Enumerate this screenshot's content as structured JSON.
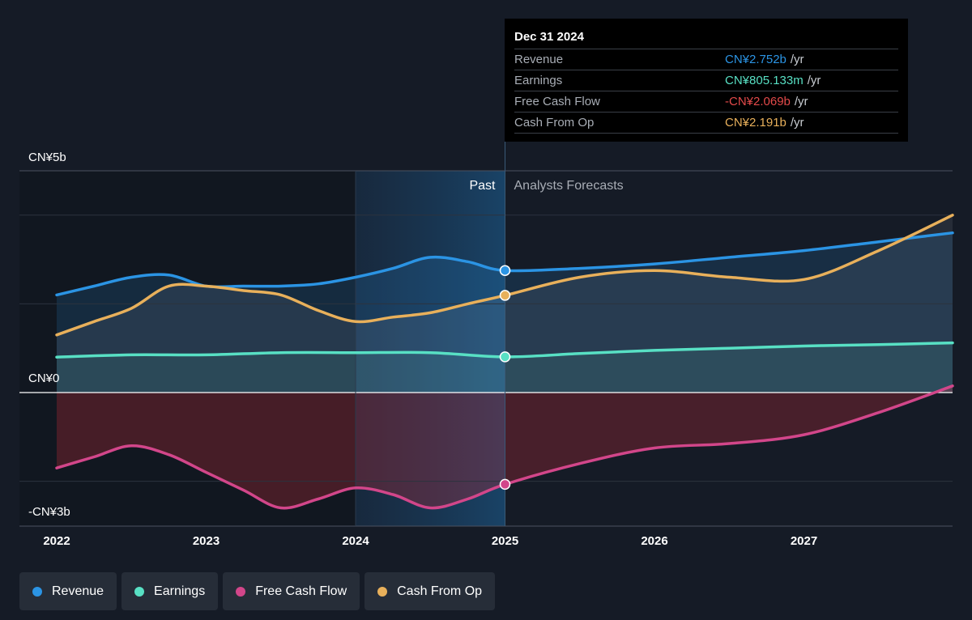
{
  "chart_data": {
    "type": "area",
    "y_axis_labels": [
      "CN¥5b",
      "CN¥0",
      "-CN¥3b"
    ],
    "ylim": [
      -3,
      5
    ],
    "xlim": [
      2022.0,
      2027.999
    ],
    "x_ticks": [
      "2022",
      "2023",
      "2024",
      "2025",
      "2026",
      "2027"
    ],
    "grid": true,
    "divider_x": 2025.0,
    "highlight_range": [
      2024.0,
      2025.0
    ],
    "past_label": "Past",
    "forecast_label": "Analysts Forecasts",
    "series": [
      {
        "name": "Revenue",
        "color": "#2b94e4",
        "points": [
          [
            2022.0,
            2.2
          ],
          [
            2022.25,
            2.4
          ],
          [
            2022.5,
            2.6
          ],
          [
            2022.75,
            2.65
          ],
          [
            2023.0,
            2.4
          ],
          [
            2023.25,
            2.4
          ],
          [
            2023.5,
            2.4
          ],
          [
            2023.75,
            2.45
          ],
          [
            2024.0,
            2.6
          ],
          [
            2024.25,
            2.8
          ],
          [
            2024.5,
            3.05
          ],
          [
            2024.75,
            2.95
          ],
          [
            2025.0,
            2.752
          ],
          [
            2025.5,
            2.8
          ],
          [
            2026.0,
            2.9
          ],
          [
            2026.5,
            3.05
          ],
          [
            2027.0,
            3.2
          ],
          [
            2027.5,
            3.4
          ],
          [
            2028.0,
            3.6
          ]
        ],
        "marker_value": 2.752
      },
      {
        "name": "Earnings",
        "color": "#58e0c4",
        "points": [
          [
            2022.0,
            0.8
          ],
          [
            2022.5,
            0.85
          ],
          [
            2023.0,
            0.85
          ],
          [
            2023.5,
            0.9
          ],
          [
            2024.0,
            0.9
          ],
          [
            2024.5,
            0.9
          ],
          [
            2025.0,
            0.805
          ],
          [
            2025.5,
            0.88
          ],
          [
            2026.0,
            0.95
          ],
          [
            2026.5,
            1.0
          ],
          [
            2027.0,
            1.05
          ],
          [
            2027.5,
            1.08
          ],
          [
            2028.0,
            1.12
          ]
        ],
        "marker_value": 0.805
      },
      {
        "name": "Free Cash Flow",
        "color": "#d2468a",
        "points": [
          [
            2022.0,
            -1.7
          ],
          [
            2022.25,
            -1.45
          ],
          [
            2022.5,
            -1.2
          ],
          [
            2022.75,
            -1.4
          ],
          [
            2023.0,
            -1.8
          ],
          [
            2023.25,
            -2.2
          ],
          [
            2023.5,
            -2.6
          ],
          [
            2023.75,
            -2.4
          ],
          [
            2024.0,
            -2.15
          ],
          [
            2024.25,
            -2.3
          ],
          [
            2024.5,
            -2.6
          ],
          [
            2024.75,
            -2.4
          ],
          [
            2025.0,
            -2.069
          ],
          [
            2025.5,
            -1.6
          ],
          [
            2026.0,
            -1.25
          ],
          [
            2026.5,
            -1.15
          ],
          [
            2027.0,
            -0.95
          ],
          [
            2027.5,
            -0.45
          ],
          [
            2028.0,
            0.15
          ]
        ],
        "marker_value": -2.069
      },
      {
        "name": "Cash From Op",
        "color": "#e8b05b",
        "points": [
          [
            2022.0,
            1.3
          ],
          [
            2022.25,
            1.6
          ],
          [
            2022.5,
            1.9
          ],
          [
            2022.75,
            2.4
          ],
          [
            2023.0,
            2.4
          ],
          [
            2023.25,
            2.3
          ],
          [
            2023.5,
            2.2
          ],
          [
            2023.75,
            1.85
          ],
          [
            2024.0,
            1.6
          ],
          [
            2024.25,
            1.7
          ],
          [
            2024.5,
            1.8
          ],
          [
            2024.75,
            2.0
          ],
          [
            2025.0,
            2.191
          ],
          [
            2025.5,
            2.6
          ],
          [
            2026.0,
            2.75
          ],
          [
            2026.5,
            2.6
          ],
          [
            2027.0,
            2.55
          ],
          [
            2027.5,
            3.2
          ],
          [
            2028.0,
            4.0
          ]
        ],
        "marker_value": 2.191
      }
    ]
  },
  "tooltip": {
    "date": "Dec 31 2024",
    "rows": [
      {
        "label": "Revenue",
        "value": "CN¥2.752b",
        "unit": "/yr",
        "color": "#2b94e4"
      },
      {
        "label": "Earnings",
        "value": "CN¥805.133m",
        "unit": "/yr",
        "color": "#58e0c4"
      },
      {
        "label": "Free Cash Flow",
        "value": "-CN¥2.069b",
        "unit": "/yr",
        "color": "#e34a4a"
      },
      {
        "label": "Cash From Op",
        "value": "CN¥2.191b",
        "unit": "/yr",
        "color": "#e8b05b"
      }
    ]
  },
  "legend": [
    {
      "label": "Revenue",
      "color": "#2b94e4"
    },
    {
      "label": "Earnings",
      "color": "#58e0c4"
    },
    {
      "label": "Free Cash Flow",
      "color": "#d2468a"
    },
    {
      "label": "Cash From Op",
      "color": "#e8b05b"
    }
  ]
}
